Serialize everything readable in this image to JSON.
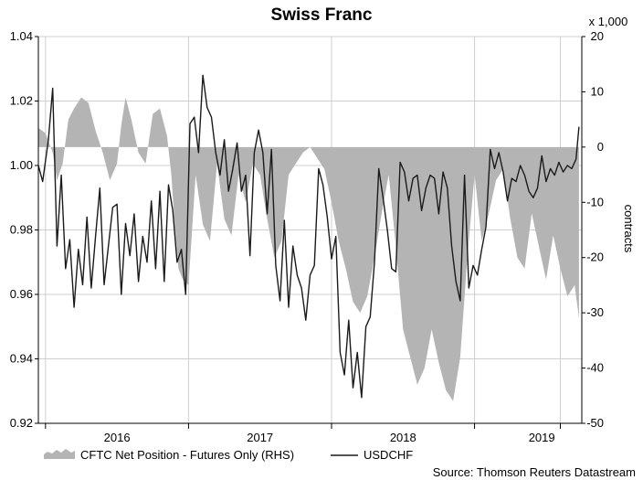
{
  "chart_data": {
    "type": "line",
    "title": "Swiss Franc",
    "source": "Source: Thomson Reuters Datastream",
    "left_axis": {
      "ylim": [
        0.92,
        1.04
      ],
      "ticks": [
        "1.04",
        "1.02",
        "1.00",
        "0.98",
        "0.96",
        "0.94",
        "0.92"
      ],
      "tick_values": [
        1.04,
        1.02,
        1.0,
        0.98,
        0.96,
        0.94,
        0.92
      ]
    },
    "right_axis": {
      "ylim": [
        -50,
        20
      ],
      "ticks": [
        "20",
        "10",
        "0",
        "-10",
        "-20",
        "-30",
        "-40",
        "-50"
      ],
      "tick_values": [
        20,
        10,
        0,
        -10,
        -20,
        -30,
        -40,
        -50
      ],
      "label": "contracts",
      "unit_label": "x 1,000"
    },
    "x_axis": {
      "xlim": [
        2015.45,
        2019.25
      ],
      "labels": [
        "2016",
        "2017",
        "2018",
        "2019"
      ],
      "label_positions": [
        2016.0,
        2017.0,
        2018.0,
        2018.97
      ],
      "year_boundaries": [
        2015.5,
        2016.5,
        2017.5,
        2018.5,
        2019.1
      ]
    },
    "grid": true,
    "legend_placement": "bottom",
    "series": [
      {
        "name": "CFTC Net Position - Futures Only (RHS)",
        "kind": "area",
        "axis": "right",
        "color": "#b4b4b4",
        "x": [
          2015.45,
          2015.5,
          2015.55,
          2015.58,
          2015.62,
          2015.66,
          2015.7,
          2015.75,
          2015.8,
          2015.85,
          2015.9,
          2015.95,
          2016.0,
          2016.03,
          2016.06,
          2016.1,
          2016.15,
          2016.2,
          2016.25,
          2016.3,
          2016.35,
          2016.38,
          2016.4,
          2016.43,
          2016.46,
          2016.5,
          2016.55,
          2016.6,
          2016.65,
          2016.7,
          2016.75,
          2016.8,
          2016.85,
          2016.9,
          2016.95,
          2017.0,
          2017.05,
          2017.1,
          2017.15,
          2017.2,
          2017.25,
          2017.3,
          2017.35,
          2017.4,
          2017.45,
          2017.5,
          2017.55,
          2017.6,
          2017.65,
          2017.7,
          2017.75,
          2017.8,
          2017.85,
          2017.9,
          2017.95,
          2018.0,
          2018.05,
          2018.1,
          2018.15,
          2018.2,
          2018.25,
          2018.3,
          2018.35,
          2018.4,
          2018.45,
          2018.5,
          2018.55,
          2018.6,
          2018.65,
          2018.7,
          2018.75,
          2018.8,
          2018.85,
          2018.9,
          2018.95,
          2019.0,
          2019.05,
          2019.1,
          2019.15,
          2019.2,
          2019.23
        ],
        "y": [
          3.5,
          2.5,
          -1,
          -6,
          -3,
          5,
          7,
          9,
          8,
          3,
          -1,
          -6,
          -3,
          4,
          9,
          5,
          -1,
          -3,
          6,
          7,
          2,
          -5,
          -13,
          -22,
          -24,
          -25,
          -5,
          -14,
          -17,
          -3,
          -13,
          -16,
          -5,
          -10,
          -3,
          -5,
          -13,
          -20,
          -17,
          -5,
          -3,
          -1,
          0,
          -2,
          -4,
          -10,
          -17,
          -22,
          -28,
          -30,
          -27,
          -20,
          -12,
          -5,
          -18,
          -33,
          -38,
          -43,
          -40,
          -33,
          -39,
          -44,
          -46,
          -38,
          -20,
          -5,
          -17,
          -12,
          -6,
          -4,
          -13,
          -20,
          -22,
          -12,
          -18,
          -24,
          -16,
          -22,
          -27,
          -25,
          -31
        ]
      },
      {
        "name": "USDCHF",
        "kind": "line",
        "axis": "left",
        "color": "#1a1a1a",
        "x": [
          2015.45,
          2015.48,
          2015.52,
          2015.55,
          2015.58,
          2015.61,
          2015.64,
          2015.67,
          2015.7,
          2015.73,
          2015.76,
          2015.79,
          2015.82,
          2015.85,
          2015.88,
          2015.91,
          2015.94,
          2015.97,
          2016.0,
          2016.03,
          2016.06,
          2016.09,
          2016.12,
          2016.15,
          2016.18,
          2016.21,
          2016.24,
          2016.27,
          2016.3,
          2016.33,
          2016.36,
          2016.39,
          2016.42,
          2016.45,
          2016.48,
          2016.51,
          2016.54,
          2016.57,
          2016.6,
          2016.63,
          2016.66,
          2016.69,
          2016.72,
          2016.75,
          2016.78,
          2016.81,
          2016.84,
          2016.87,
          2016.9,
          2016.93,
          2016.96,
          2016.99,
          2017.02,
          2017.05,
          2017.08,
          2017.11,
          2017.14,
          2017.17,
          2017.2,
          2017.23,
          2017.26,
          2017.29,
          2017.32,
          2017.35,
          2017.38,
          2017.41,
          2017.44,
          2017.47,
          2017.5,
          2017.53,
          2017.56,
          2017.59,
          2017.62,
          2017.65,
          2017.68,
          2017.71,
          2017.74,
          2017.77,
          2017.8,
          2017.83,
          2017.86,
          2017.89,
          2017.92,
          2017.95,
          2017.98,
          2018.01,
          2018.04,
          2018.07,
          2018.1,
          2018.13,
          2018.16,
          2018.19,
          2018.22,
          2018.25,
          2018.28,
          2018.31,
          2018.34,
          2018.37,
          2018.4,
          2018.43,
          2018.46,
          2018.49,
          2018.52,
          2018.55,
          2018.58,
          2018.61,
          2018.64,
          2018.67,
          2018.7,
          2018.73,
          2018.76,
          2018.79,
          2018.82,
          2018.85,
          2018.88,
          2018.91,
          2018.94,
          2018.97,
          2019.0,
          2019.03,
          2019.06,
          2019.09,
          2019.12,
          2019.15,
          2019.18,
          2019.21,
          2019.23
        ],
        "y": [
          1.0,
          0.995,
          1.008,
          1.024,
          0.975,
          0.997,
          0.968,
          0.977,
          0.956,
          0.974,
          0.963,
          0.984,
          0.962,
          0.978,
          0.993,
          0.963,
          0.975,
          0.987,
          0.988,
          0.96,
          0.982,
          0.972,
          0.985,
          0.964,
          0.978,
          0.97,
          0.989,
          0.968,
          0.992,
          0.964,
          0.994,
          0.986,
          0.97,
          0.974,
          0.96,
          1.013,
          1.015,
          1.004,
          1.028,
          1.018,
          1.015,
          1.004,
          0.997,
          1.008,
          0.992,
          0.999,
          1.007,
          0.992,
          0.997,
          0.972,
          1.004,
          1.011,
          1.004,
          0.985,
          1.005,
          0.969,
          0.958,
          0.983,
          0.956,
          0.975,
          0.966,
          0.962,
          0.952,
          0.966,
          0.969,
          0.999,
          0.994,
          0.984,
          0.971,
          0.978,
          0.942,
          0.935,
          0.952,
          0.931,
          0.942,
          0.928,
          0.95,
          0.953,
          0.97,
          0.999,
          0.99,
          0.98,
          0.968,
          0.967,
          1.001,
          0.998,
          0.989,
          0.996,
          0.997,
          0.986,
          0.993,
          0.997,
          0.996,
          0.985,
          0.998,
          0.993,
          0.975,
          0.964,
          0.958,
          0.997,
          0.962,
          0.969,
          0.966,
          0.974,
          0.981,
          1.005,
          0.999,
          1.004,
          0.998,
          0.989,
          0.996,
          0.995,
          1.0,
          0.997,
          0.992,
          0.99,
          0.993,
          1.003,
          0.995,
          0.999,
          0.997,
          1.001,
          0.998,
          1.0,
          0.999,
          1.002,
          1.012
        ]
      }
    ]
  }
}
